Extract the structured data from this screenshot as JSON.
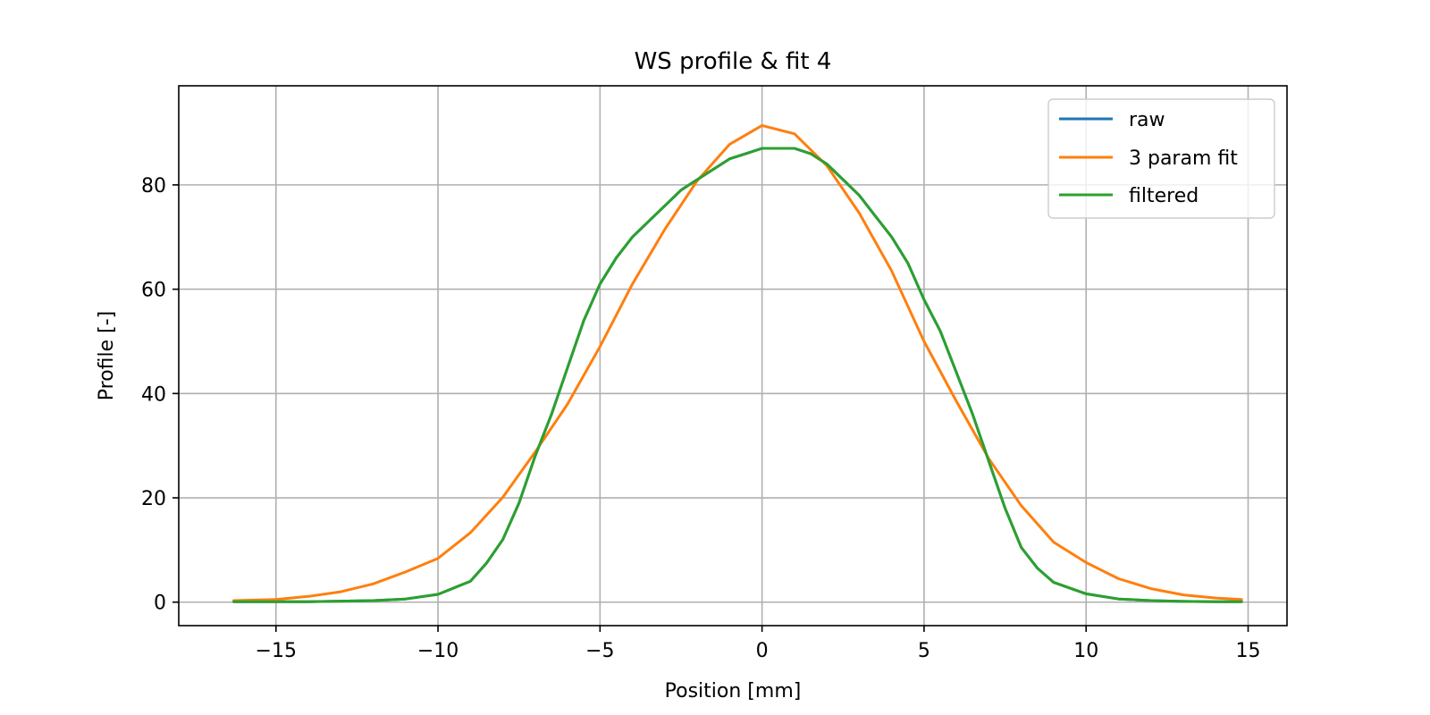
{
  "chart_data": {
    "type": "line",
    "title": "WS profile & fit 4",
    "xlabel": "Position [mm]",
    "ylabel": "Profile [-]",
    "xlim": [
      -18,
      16.2
    ],
    "ylim": [
      -4.5,
      99
    ],
    "xticks": [
      -15,
      -10,
      -5,
      0,
      5,
      10,
      15
    ],
    "xtick_labels": [
      "−15",
      "−10",
      "−5",
      "0",
      "5",
      "10",
      "15"
    ],
    "yticks": [
      0,
      20,
      40,
      60,
      80
    ],
    "ytick_labels": [
      "0",
      "20",
      "40",
      "60",
      "80"
    ],
    "grid": true,
    "legend_position": "top-right",
    "series": [
      {
        "name": "raw",
        "color": "#1f77b4",
        "x": [
          -16.3,
          -15,
          -14,
          -13,
          -12,
          -11,
          -10,
          -9,
          -8.5,
          -8,
          -7.5,
          -7,
          -6.5,
          -6,
          -5.5,
          -5,
          -4.5,
          -4,
          -3.5,
          -3,
          -2.5,
          -2,
          -1.5,
          -1,
          -0.5,
          0,
          0.5,
          1,
          1.5,
          2,
          2.5,
          3,
          3.5,
          4,
          4.5,
          5,
          5.5,
          6,
          6.5,
          7,
          7.5,
          8,
          8.5,
          9,
          10,
          11,
          12,
          13,
          14,
          14.8
        ],
        "y": [
          0.1,
          0.1,
          0.1,
          0.2,
          0.3,
          0.6,
          1.5,
          4,
          7.5,
          12,
          19,
          28,
          36,
          45,
          54,
          61,
          66,
          70,
          73,
          76,
          79,
          81,
          83,
          85,
          86,
          87,
          87,
          87,
          86,
          84,
          81,
          78,
          74,
          70,
          65,
          58,
          52,
          44,
          36,
          27,
          18,
          10.5,
          6.5,
          3.8,
          1.6,
          0.6,
          0.3,
          0.15,
          0.1,
          0.1
        ]
      },
      {
        "name": "3 param fit",
        "color": "#ff7f0e",
        "x": [
          -16.3,
          -15,
          -14,
          -13,
          -12,
          -11,
          -10,
          -9,
          -8,
          -7,
          -6,
          -5,
          -4,
          -3,
          -2,
          -1,
          0,
          1,
          2,
          3,
          4,
          5,
          6,
          7,
          8,
          9,
          10,
          11,
          12,
          13,
          14,
          14.8
        ],
        "y": [
          0.3,
          0.5,
          1.1,
          2.0,
          3.5,
          5.8,
          8.4,
          13.3,
          20.1,
          28.8,
          38.0,
          49.0,
          61.0,
          71.5,
          80.8,
          87.8,
          91.4,
          89.8,
          83.7,
          74.6,
          63.5,
          50.0,
          38.5,
          27.5,
          18.5,
          11.5,
          7.6,
          4.5,
          2.6,
          1.4,
          0.8,
          0.5
        ]
      },
      {
        "name": "filtered",
        "color": "#2ca02c",
        "x": [
          -16.3,
          -15,
          -14,
          -13,
          -12,
          -11,
          -10,
          -9,
          -8.5,
          -8,
          -7.5,
          -7,
          -6.5,
          -6,
          -5.5,
          -5,
          -4.5,
          -4,
          -3.5,
          -3,
          -2.5,
          -2,
          -1.5,
          -1,
          -0.5,
          0,
          0.5,
          1,
          1.5,
          2,
          2.5,
          3,
          3.5,
          4,
          4.5,
          5,
          5.5,
          6,
          6.5,
          7,
          7.5,
          8,
          8.5,
          9,
          10,
          11,
          12,
          13,
          14,
          14.8
        ],
        "y": [
          0.1,
          0.1,
          0.1,
          0.2,
          0.3,
          0.6,
          1.5,
          4,
          7.5,
          12,
          19,
          28,
          36,
          45,
          54,
          61,
          66,
          70,
          73,
          76,
          79,
          81,
          83,
          85,
          86,
          87,
          87,
          87,
          86,
          84,
          81,
          78,
          74,
          70,
          65,
          58,
          52,
          44,
          36,
          27,
          18,
          10.5,
          6.5,
          3.8,
          1.6,
          0.6,
          0.3,
          0.15,
          0.1,
          0.1
        ]
      }
    ]
  }
}
